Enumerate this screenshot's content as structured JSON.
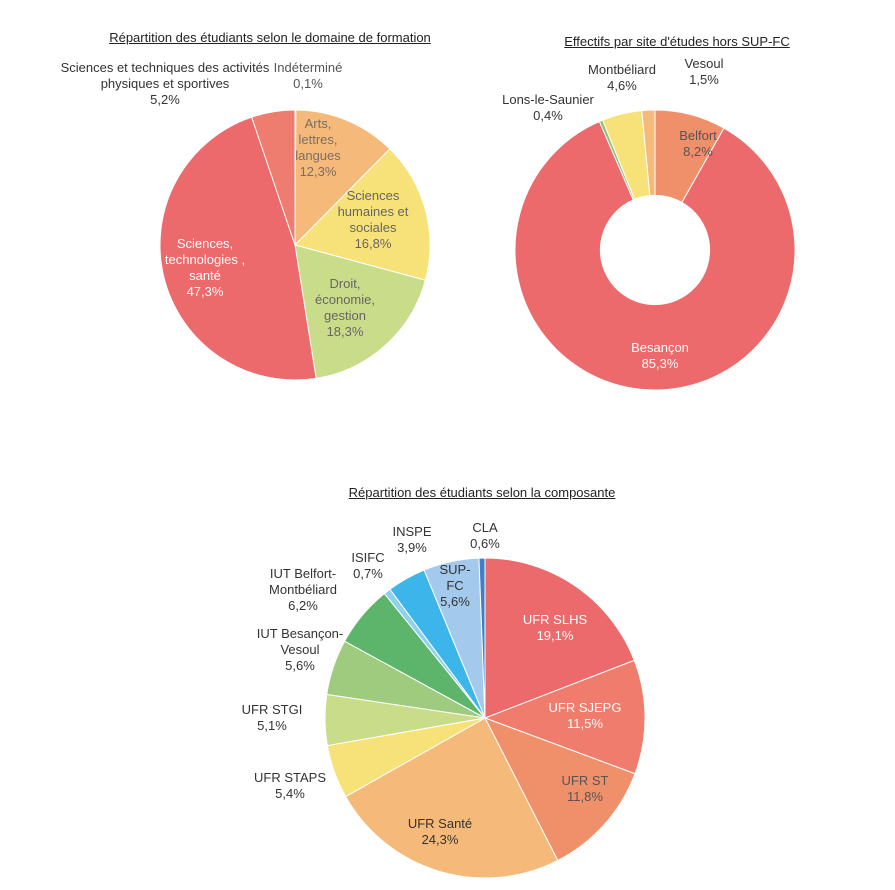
{
  "chart_data": [
    {
      "type": "pie",
      "title": "Répartition des étudiants selon le domaine de formation",
      "categories": [
        "Indéterminé",
        "Arts, lettres, langues",
        "Sciences humaines et sociales",
        "Droit, économie, gestion",
        "Sciences, technologies , santé",
        "Sciences et techniques des activités physiques et sportives"
      ],
      "values": [
        0.1,
        12.3,
        16.8,
        18.3,
        47.3,
        5.2
      ],
      "value_labels": [
        "0,1%",
        "12,3%",
        "16,8%",
        "18,3%",
        "47,3%",
        "5,2%"
      ],
      "colors": [
        "#f0a070",
        "#f5b97a",
        "#f7e27a",
        "#c9dc8a",
        "#ec6a6b",
        "#ee7c6f"
      ]
    },
    {
      "type": "donut",
      "title": "Effectifs par site d'études hors SUP-FC",
      "categories": [
        "Belfort",
        "Besançon",
        "Lons-le-Saunier",
        "Montbéliard",
        "Vesoul"
      ],
      "values": [
        8.2,
        85.3,
        0.4,
        4.6,
        1.5
      ],
      "value_labels": [
        "8,2%",
        "85,3%",
        "0,4%",
        "4,6%",
        "1,5%"
      ],
      "colors": [
        "#f0906a",
        "#ec6a6b",
        "#8fc07a",
        "#f7e27a",
        "#f5b97a"
      ]
    },
    {
      "type": "pie",
      "title": "Répartition des étudiants selon la composante",
      "categories": [
        "UFR SLHS",
        "UFR SJEPG",
        "UFR ST",
        "UFR Santé",
        "UFR STAPS",
        "UFR STGI",
        "IUT Besançon-Vesoul",
        "IUT Belfort-Montbéliard",
        "ISIFC",
        "INSPE",
        "SUP-FC",
        "CLA"
      ],
      "values": [
        19.1,
        11.5,
        11.8,
        24.3,
        5.4,
        5.1,
        5.6,
        6.2,
        0.7,
        3.9,
        5.6,
        0.6
      ],
      "value_labels": [
        "19,1%",
        "11,5%",
        "11,8%",
        "24,3%",
        "5,4%",
        "5,1%",
        "5,6%",
        "6,2%",
        "0,7%",
        "3,9%",
        "5,6%",
        "0,6%"
      ],
      "colors": [
        "#ec6a6b",
        "#ef7c6c",
        "#f0906a",
        "#f5b97a",
        "#f7e27a",
        "#c9dc8a",
        "#9fcb7e",
        "#5db56b",
        "#8fd0ef",
        "#3cb6ea",
        "#a3c9ec",
        "#3f7fc4"
      ]
    }
  ]
}
